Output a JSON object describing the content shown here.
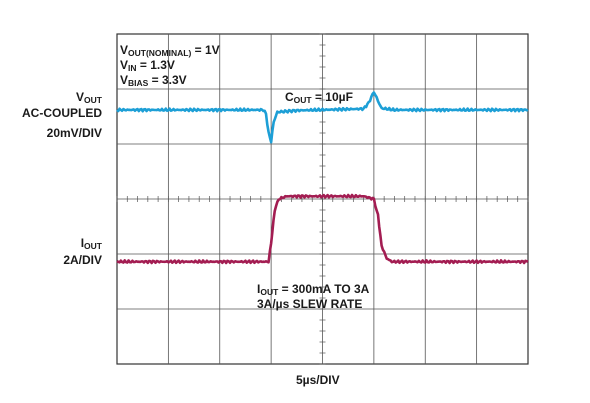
{
  "chart_data": {
    "type": "line",
    "settings": {
      "vout_nominal": {
        "name": "V",
        "sub": "OUT(NOMINAL)",
        "value": " = 1V"
      },
      "vin": {
        "name": "V",
        "sub": "IN",
        "value": " = 1.3V"
      },
      "vbias": {
        "name": "V",
        "sub": "BIAS",
        "value": " = 3.3V"
      }
    },
    "cout": {
      "name": "C",
      "sub": "OUT",
      "value": " = 10µF"
    },
    "iout_note": {
      "name": "I",
      "sub": "OUT",
      "value": " = 300mA TO 3A",
      "line2": "3A/µs SLEW RATE"
    },
    "channels": [
      {
        "name": "V",
        "sub": "OUT",
        "line2": "AC-COUPLED",
        "scale": "20mV/DIV",
        "color": "#1d9fd6"
      },
      {
        "name": "I",
        "sub": "OUT",
        "scale": "2A/DIV",
        "color": "#a31d52"
      }
    ],
    "xlabel": "5µs/DIV",
    "grid": {
      "x_divisions": 8,
      "y_divisions": 6,
      "minor_ticks": true
    },
    "x_range_div": [
      0,
      8
    ],
    "y_range_div": [
      0,
      6
    ],
    "series": [
      {
        "color": "#1d9fd6",
        "points": [
          [
            0,
            4.62
          ],
          [
            2.85,
            4.62
          ],
          [
            2.9,
            4.55
          ],
          [
            2.95,
            4.2
          ],
          [
            3.0,
            4.05
          ],
          [
            3.05,
            4.4
          ],
          [
            3.12,
            4.58
          ],
          [
            3.5,
            4.61
          ],
          [
            4.8,
            4.64
          ],
          [
            4.9,
            4.75
          ],
          [
            5.0,
            4.95
          ],
          [
            5.08,
            4.78
          ],
          [
            5.15,
            4.65
          ],
          [
            5.4,
            4.62
          ],
          [
            8,
            4.62
          ]
        ]
      },
      {
        "color": "#a31d52",
        "points": [
          [
            0,
            1.86
          ],
          [
            2.95,
            1.86
          ],
          [
            3.0,
            2.2
          ],
          [
            3.07,
            2.8
          ],
          [
            3.15,
            3.0
          ],
          [
            3.3,
            3.05
          ],
          [
            4.8,
            3.05
          ],
          [
            5.0,
            3.0
          ],
          [
            5.08,
            2.7
          ],
          [
            5.15,
            2.15
          ],
          [
            5.25,
            1.92
          ],
          [
            5.35,
            1.86
          ],
          [
            8,
            1.86
          ]
        ]
      }
    ]
  }
}
